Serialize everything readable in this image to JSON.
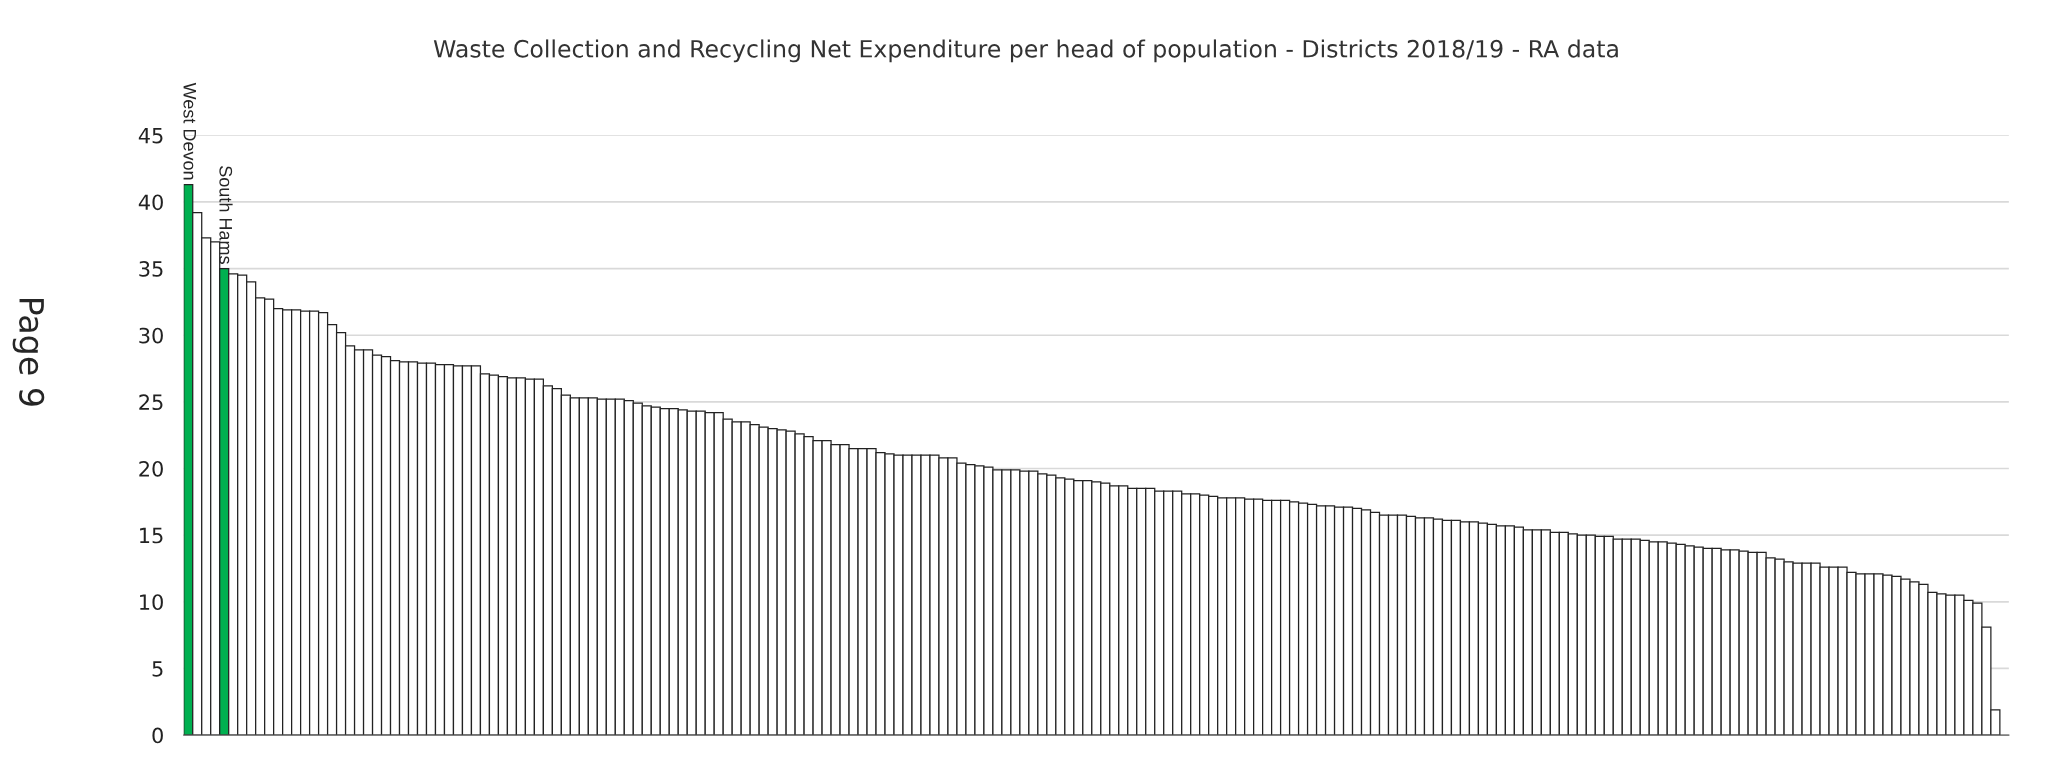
{
  "chart_data": {
    "type": "bar",
    "title": "Waste Collection and Recycling Net Expenditure per head of population - Districts 2018/19 - RA data",
    "annotations": [
      "Page 9"
    ],
    "categories": [
      "West Devon",
      null,
      null,
      null,
      "South Hams",
      null,
      null,
      null,
      null,
      null,
      null,
      null,
      null,
      null,
      null,
      null,
      null,
      null,
      null,
      null,
      null,
      null,
      null,
      null,
      null,
      null,
      null,
      null,
      null,
      null,
      null,
      null,
      null,
      null,
      null,
      null,
      null,
      null,
      null,
      null,
      null,
      null,
      null,
      null,
      null,
      null,
      null,
      null,
      null,
      null,
      null,
      null,
      null,
      null,
      null,
      null,
      null,
      null,
      null,
      null,
      null,
      null,
      null,
      null,
      null,
      null,
      null,
      null,
      null,
      null,
      null,
      null,
      null,
      null,
      null,
      null,
      null,
      null,
      null,
      null,
      null,
      null,
      null,
      null,
      null,
      null,
      null,
      null,
      null,
      null,
      null,
      null,
      null,
      null,
      null,
      null,
      null,
      null,
      null,
      null,
      null,
      null,
      null,
      null,
      null,
      null,
      null,
      null,
      null,
      null,
      null,
      null,
      null,
      null,
      null,
      null,
      null,
      null,
      null,
      null,
      null,
      null,
      null,
      null,
      null,
      null,
      null,
      null,
      null,
      null,
      null,
      null,
      null,
      null,
      null,
      null,
      null,
      null,
      null,
      null,
      null,
      null,
      null,
      null,
      null,
      null,
      null,
      null,
      null,
      null,
      null,
      null,
      null,
      null,
      null,
      null,
      null,
      null,
      null,
      null,
      null,
      null,
      null,
      null,
      null,
      null,
      null,
      null,
      null,
      null,
      null,
      null,
      null,
      null,
      null,
      null,
      null,
      null,
      null,
      null,
      null,
      null,
      null,
      null,
      null,
      null,
      null,
      null,
      null,
      null,
      null,
      null,
      null,
      null,
      null,
      null,
      null,
      null,
      null,
      null,
      null,
      null
    ],
    "values": [
      41.3,
      39.2,
      37.3,
      37.0,
      35.0,
      34.6,
      34.5,
      34.0,
      32.8,
      32.7,
      32.0,
      31.9,
      31.9,
      31.8,
      31.8,
      31.7,
      30.8,
      30.2,
      29.2,
      28.9,
      28.9,
      28.5,
      28.4,
      28.1,
      28.0,
      28.0,
      27.9,
      27.9,
      27.8,
      27.8,
      27.7,
      27.7,
      27.7,
      27.1,
      27.0,
      26.9,
      26.8,
      26.8,
      26.7,
      26.7,
      26.2,
      26.0,
      25.5,
      25.3,
      25.3,
      25.3,
      25.2,
      25.2,
      25.2,
      25.1,
      24.9,
      24.7,
      24.6,
      24.5,
      24.5,
      24.4,
      24.3,
      24.3,
      24.2,
      24.2,
      23.7,
      23.5,
      23.5,
      23.3,
      23.1,
      23.0,
      22.9,
      22.8,
      22.6,
      22.4,
      22.1,
      22.1,
      21.8,
      21.8,
      21.5,
      21.5,
      21.5,
      21.2,
      21.1,
      21.0,
      21.0,
      21.0,
      21.0,
      21.0,
      20.8,
      20.8,
      20.4,
      20.3,
      20.2,
      20.1,
      19.9,
      19.9,
      19.9,
      19.8,
      19.8,
      19.6,
      19.5,
      19.3,
      19.2,
      19.1,
      19.1,
      19.0,
      18.9,
      18.7,
      18.7,
      18.5,
      18.5,
      18.5,
      18.3,
      18.3,
      18.3,
      18.1,
      18.1,
      18.0,
      17.9,
      17.8,
      17.8,
      17.8,
      17.7,
      17.7,
      17.6,
      17.6,
      17.6,
      17.5,
      17.4,
      17.3,
      17.2,
      17.2,
      17.1,
      17.1,
      17.0,
      16.9,
      16.7,
      16.5,
      16.5,
      16.5,
      16.4,
      16.3,
      16.3,
      16.2,
      16.1,
      16.1,
      16.0,
      16.0,
      15.9,
      15.8,
      15.7,
      15.7,
      15.6,
      15.4,
      15.4,
      15.4,
      15.2,
      15.2,
      15.1,
      15.0,
      15.0,
      14.9,
      14.9,
      14.7,
      14.7,
      14.7,
      14.6,
      14.5,
      14.5,
      14.4,
      14.3,
      14.2,
      14.1,
      14.0,
      14.0,
      13.9,
      13.9,
      13.8,
      13.7,
      13.7,
      13.3,
      13.2,
      13.0,
      12.9,
      12.9,
      12.9,
      12.6,
      12.6,
      12.6,
      12.2,
      12.1,
      12.1,
      12.1,
      12.0,
      11.9,
      11.7,
      11.5,
      11.3,
      10.7,
      10.6,
      10.5,
      10.5,
      10.1,
      9.9,
      8.1,
      1.9
    ],
    "colors": [
      "#00b050",
      "#ffffff",
      "#ffffff",
      "#ffffff",
      "#00b050",
      "#ffffff",
      "#ffffff",
      "#ffffff",
      "#ffffff",
      "#ffffff",
      "#ffffff",
      "#ffffff",
      "#ffffff",
      "#ffffff",
      "#ffffff",
      "#ffffff",
      "#ffffff",
      "#ffffff",
      "#ffffff",
      "#ffffff",
      "#ffffff",
      "#ffffff",
      "#ffffff",
      "#ffffff",
      "#ffffff",
      "#ffffff",
      "#ffffff",
      "#ffffff",
      "#ffffff",
      "#ffffff",
      "#ffffff",
      "#ffffff",
      "#ffffff",
      "#ffffff",
      "#ffffff",
      "#ffffff",
      "#ffffff",
      "#ffffff",
      "#ffffff",
      "#ffffff",
      "#ffffff",
      "#ffffff",
      "#ffffff",
      "#ffffff",
      "#ffffff",
      "#ffffff",
      "#ffffff",
      "#ffffff",
      "#ffffff",
      "#ffffff",
      "#ffffff",
      "#ffffff",
      "#ffffff",
      "#ffffff",
      "#ffffff",
      "#ffffff",
      "#ffffff",
      "#ffffff",
      "#ffffff",
      "#ffffff",
      "#ffffff",
      "#ffffff",
      "#ffffff",
      "#ffffff",
      "#ffffff",
      "#ffffff",
      "#ffffff",
      "#ffffff",
      "#ffffff",
      "#ffffff",
      "#ffffff",
      "#ffffff",
      "#ffffff",
      "#ffffff",
      "#ffffff",
      "#ffffff",
      "#ffffff",
      "#ffffff",
      "#ffffff",
      "#ffffff",
      "#ffffff",
      "#ffffff",
      "#ffffff",
      "#ffffff",
      "#ffffff",
      "#ffffff",
      "#ffffff",
      "#ffffff",
      "#ffffff",
      "#ffffff",
      "#ffffff",
      "#ffffff",
      "#ffffff",
      "#ffffff",
      "#ffffff",
      "#ffffff",
      "#ffffff",
      "#ffffff",
      "#ffffff",
      "#ffffff",
      "#ffffff",
      "#ffffff",
      "#ffffff",
      "#ffffff",
      "#ffffff",
      "#ffffff",
      "#ffffff",
      "#ffffff",
      "#ffffff",
      "#ffffff",
      "#ffffff",
      "#ffffff",
      "#ffffff",
      "#ffffff",
      "#ffffff",
      "#ffffff",
      "#ffffff",
      "#ffffff",
      "#ffffff",
      "#ffffff",
      "#ffffff",
      "#ffffff",
      "#ffffff",
      "#ffffff",
      "#ffffff",
      "#ffffff",
      "#ffffff",
      "#ffffff",
      "#ffffff",
      "#ffffff",
      "#ffffff",
      "#ffffff",
      "#ffffff",
      "#ffffff",
      "#ffffff",
      "#ffffff",
      "#ffffff",
      "#ffffff",
      "#ffffff",
      "#ffffff",
      "#ffffff",
      "#ffffff",
      "#ffffff",
      "#ffffff",
      "#ffffff",
      "#ffffff",
      "#ffffff",
      "#ffffff",
      "#ffffff",
      "#ffffff",
      "#ffffff",
      "#ffffff",
      "#ffffff",
      "#ffffff",
      "#ffffff",
      "#ffffff",
      "#ffffff",
      "#ffffff",
      "#ffffff",
      "#ffffff",
      "#ffffff",
      "#ffffff",
      "#ffffff",
      "#ffffff",
      "#ffffff",
      "#ffffff",
      "#ffffff",
      "#ffffff",
      "#ffffff",
      "#ffffff",
      "#ffffff",
      "#ffffff",
      "#ffffff",
      "#ffffff",
      "#ffffff",
      "#ffffff",
      "#ffffff",
      "#ffffff",
      "#ffffff",
      "#ffffff",
      "#ffffff",
      "#ffffff",
      "#ffffff",
      "#ffffff",
      "#ffffff",
      "#ffffff",
      "#ffffff",
      "#ffffff",
      "#ffffff",
      "#ffffff",
      "#ffffff",
      "#ffffff",
      "#ffffff",
      "#ffffff",
      "#ffffff",
      "#ffffff",
      "#ffffff",
      "#ffffff",
      "#ffffff",
      "#ffffff",
      "#ffffff",
      "#ffffff"
    ],
    "ylim": [
      0,
      45
    ],
    "yticks": [
      0,
      5,
      10,
      15,
      20,
      25,
      30,
      35,
      40,
      45
    ],
    "grid": "y",
    "legend": false
  }
}
